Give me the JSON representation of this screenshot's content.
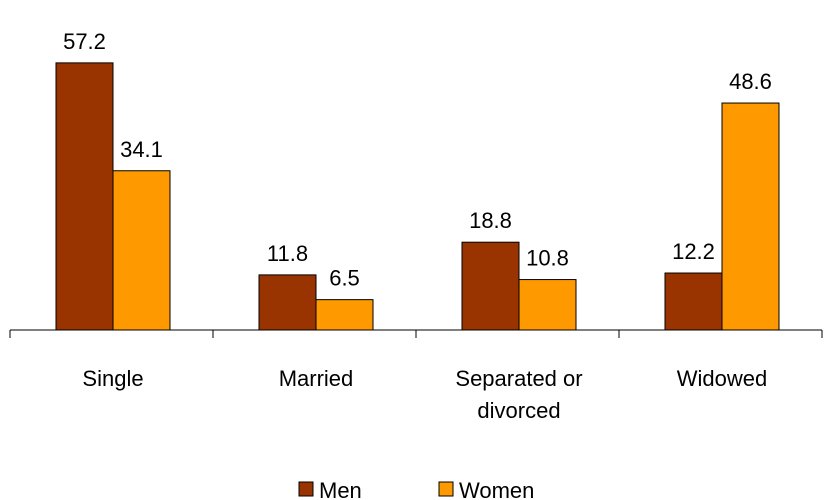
{
  "chart_data": {
    "type": "bar",
    "categories": [
      [
        "Single"
      ],
      [
        "Married"
      ],
      [
        "Separated or",
        "divorced"
      ],
      [
        "Widowed"
      ]
    ],
    "series": [
      {
        "name": "Men",
        "values": [
          57.2,
          11.8,
          18.8,
          12.2
        ],
        "value_labels": [
          "57.2",
          "11.8",
          "18.8",
          "12.2"
        ],
        "color": "#993300",
        "outline": "#000000"
      },
      {
        "name": "Women",
        "values": [
          34.1,
          6.5,
          10.8,
          48.6
        ],
        "value_labels": [
          "34.1",
          "6.5",
          "10.8",
          "48.6"
        ],
        "color": "#ff9900",
        "outline": "#000000"
      }
    ],
    "title": "",
    "xlabel": "",
    "ylabel": "",
    "ylim": [
      0,
      60
    ],
    "grid": false,
    "legend": "bottom"
  }
}
